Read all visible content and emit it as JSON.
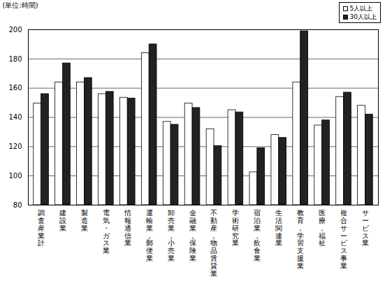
{
  "chart_data": {
    "type": "bar",
    "ylabel": "(単位:時間)",
    "categories": [
      "調査産業計",
      "建設業",
      "製造業",
      "電気・ガス業",
      "情報通信業",
      "運輸業，郵便業",
      "卸売業，小売業",
      "金融業，保険業",
      "不動産，物品賃貸業",
      "学術研究業",
      "宿泊業，飲食業",
      "生活関連業",
      "教育，学習支援業",
      "医療，福祉",
      "複合サービス事業",
      "サービス業"
    ],
    "series": [
      {
        "name": "5人以上",
        "color": "#ffffff",
        "values": [
          149.5,
          164,
          164,
          156,
          153.5,
          184,
          137,
          149.5,
          132,
          145,
          102.5,
          128,
          164,
          134.5,
          154,
          148
        ]
      },
      {
        "name": "30人以上",
        "color": "#222222",
        "values": [
          156,
          177,
          167,
          157.5,
          153,
          190,
          135,
          146.5,
          120.5,
          143.5,
          119,
          126,
          199,
          138,
          157,
          142
        ]
      }
    ],
    "ylim": [
      80,
      200
    ],
    "yticks": [
      80,
      100,
      120,
      140,
      160,
      180,
      200
    ],
    "grid": true,
    "legend": "top-right"
  }
}
